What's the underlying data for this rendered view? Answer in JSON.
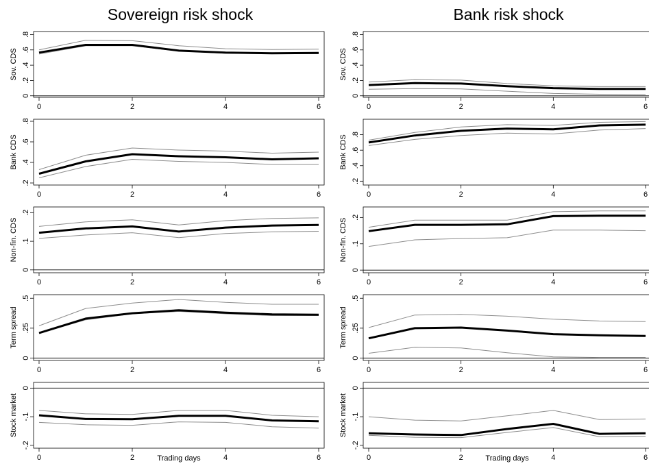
{
  "titles": [
    "Sovereign risk shock",
    "Bank risk shock"
  ],
  "xlabel": "Trading days",
  "colors": {
    "point": "#000000",
    "band": "#8c8c8c",
    "zero_line": "#000000",
    "frame": "#000000"
  },
  "chart_data": [
    {
      "type": "line",
      "column": 0,
      "row": 0,
      "ylabel": "Sov. CDS",
      "x": [
        0,
        1,
        2,
        3,
        4,
        5,
        6
      ],
      "xlim": [
        0,
        6
      ],
      "xticks": [
        "0",
        "2",
        "4",
        "6"
      ],
      "ylim": [
        -0.02,
        0.84
      ],
      "yticks": [
        {
          "v": 0,
          "t": "0"
        },
        {
          "v": 0.2,
          "t": ".2"
        },
        {
          "v": 0.4,
          "t": ".4"
        },
        {
          "v": 0.6,
          "t": ".6"
        },
        {
          "v": 0.8,
          "t": ".8"
        }
      ],
      "zero_line": true,
      "series": [
        {
          "role": "point",
          "values": [
            0.565,
            0.665,
            0.665,
            0.59,
            0.565,
            0.555,
            0.56
          ]
        },
        {
          "role": "upper",
          "values": [
            0.6,
            0.725,
            0.72,
            0.655,
            0.615,
            0.605,
            0.61
          ]
        },
        {
          "role": "lower",
          "values": [
            0.545,
            0.655,
            0.655,
            0.585,
            0.555,
            0.55,
            0.55
          ]
        }
      ]
    },
    {
      "type": "line",
      "column": 1,
      "row": 0,
      "ylabel": "Sov. CDS",
      "x": [
        0,
        1,
        2,
        3,
        4,
        5,
        6
      ],
      "xlim": [
        0,
        6
      ],
      "xticks": [
        "0",
        "2",
        "4",
        "6"
      ],
      "ylim": [
        -0.02,
        0.84
      ],
      "yticks": [
        {
          "v": 0,
          "t": "0"
        },
        {
          "v": 0.2,
          "t": ".2"
        },
        {
          "v": 0.4,
          "t": ".4"
        },
        {
          "v": 0.6,
          "t": ".6"
        },
        {
          "v": 0.8,
          "t": ".8"
        }
      ],
      "zero_line": true,
      "series": [
        {
          "role": "point",
          "values": [
            0.14,
            0.165,
            0.16,
            0.125,
            0.1,
            0.09,
            0.09
          ]
        },
        {
          "role": "upper",
          "values": [
            0.18,
            0.21,
            0.205,
            0.16,
            0.13,
            0.12,
            0.12
          ]
        },
        {
          "role": "lower",
          "values": [
            0.085,
            0.095,
            0.09,
            0.06,
            0.03,
            0.02,
            0.015
          ]
        }
      ]
    },
    {
      "type": "line",
      "column": 0,
      "row": 1,
      "ylabel": "Bank CDS",
      "x": [
        0,
        1,
        2,
        3,
        4,
        5,
        6
      ],
      "xlim": [
        0,
        6
      ],
      "xticks": [
        "0",
        "2",
        "4",
        "6"
      ],
      "ylim": [
        0.18,
        0.82
      ],
      "yticks": [
        {
          "v": 0.2,
          "t": ".2"
        },
        {
          "v": 0.4,
          "t": ".4"
        },
        {
          "v": 0.6,
          "t": ".6"
        },
        {
          "v": 0.8,
          "t": ".8"
        }
      ],
      "zero_line": false,
      "series": [
        {
          "role": "point",
          "values": [
            0.29,
            0.41,
            0.48,
            0.46,
            0.45,
            0.43,
            0.44
          ]
        },
        {
          "role": "upper",
          "values": [
            0.33,
            0.47,
            0.54,
            0.52,
            0.51,
            0.49,
            0.5
          ]
        },
        {
          "role": "lower",
          "values": [
            0.25,
            0.36,
            0.43,
            0.41,
            0.4,
            0.38,
            0.38
          ]
        }
      ]
    },
    {
      "type": "line",
      "column": 1,
      "row": 1,
      "ylabel": "Bank CDS",
      "x": [
        0,
        1,
        2,
        3,
        4,
        5,
        6
      ],
      "xlim": [
        0,
        6
      ],
      "xticks": [
        "0",
        "2",
        "4",
        "6"
      ],
      "ylim": [
        0.15,
        1.0
      ],
      "yticks": [
        {
          "v": 0.2,
          "t": ".2"
        },
        {
          "v": 0.4,
          "t": ".4"
        },
        {
          "v": 0.6,
          "t": ".6"
        },
        {
          "v": 0.8,
          "t": ".8"
        }
      ],
      "zero_line": false,
      "series": [
        {
          "role": "point",
          "values": [
            0.7,
            0.79,
            0.85,
            0.88,
            0.87,
            0.92,
            0.93
          ]
        },
        {
          "role": "upper",
          "values": [
            0.73,
            0.83,
            0.9,
            0.93,
            0.92,
            0.96,
            0.97
          ]
        },
        {
          "role": "lower",
          "values": [
            0.66,
            0.74,
            0.79,
            0.82,
            0.81,
            0.86,
            0.88
          ]
        }
      ]
    },
    {
      "type": "line",
      "column": 0,
      "row": 2,
      "ylabel": "Non-fin. CDS",
      "x": [
        0,
        1,
        2,
        3,
        4,
        5,
        6
      ],
      "xlim": [
        0,
        6
      ],
      "xticks": [
        "0",
        "2",
        "4",
        "6"
      ],
      "ylim": [
        -0.01,
        0.22
      ],
      "yticks": [
        {
          "v": 0,
          "t": "0"
        },
        {
          "v": 0.1,
          "t": ".1"
        },
        {
          "v": 0.2,
          "t": ".2"
        }
      ],
      "zero_line": true,
      "series": [
        {
          "role": "point",
          "values": [
            0.13,
            0.145,
            0.152,
            0.134,
            0.148,
            0.155,
            0.157
          ]
        },
        {
          "role": "upper",
          "values": [
            0.152,
            0.168,
            0.175,
            0.157,
            0.172,
            0.18,
            0.182
          ]
        },
        {
          "role": "lower",
          "values": [
            0.11,
            0.122,
            0.13,
            0.113,
            0.127,
            0.133,
            0.135
          ]
        }
      ]
    },
    {
      "type": "line",
      "column": 1,
      "row": 2,
      "ylabel": "Non-fin. CDS",
      "x": [
        0,
        1,
        2,
        3,
        4,
        5,
        6
      ],
      "xlim": [
        0,
        6
      ],
      "xticks": [
        "0",
        "2",
        "4",
        "6"
      ],
      "ylim": [
        -0.01,
        0.24
      ],
      "yticks": [
        {
          "v": 0,
          "t": "0"
        },
        {
          "v": 0.1,
          "t": ".1"
        },
        {
          "v": 0.2,
          "t": ".2"
        }
      ],
      "zero_line": true,
      "series": [
        {
          "role": "point",
          "values": [
            0.148,
            0.172,
            0.172,
            0.174,
            0.205,
            0.207,
            0.207
          ]
        },
        {
          "role": "upper",
          "values": [
            0.163,
            0.19,
            0.19,
            0.19,
            0.222,
            0.225,
            0.225
          ]
        },
        {
          "role": "lower",
          "values": [
            0.09,
            0.115,
            0.12,
            0.123,
            0.152,
            0.152,
            0.15
          ]
        }
      ]
    },
    {
      "type": "line",
      "column": 0,
      "row": 3,
      "ylabel": "Term spread",
      "x": [
        0,
        1,
        2,
        3,
        4,
        5,
        6
      ],
      "xlim": [
        0,
        6
      ],
      "xticks": [
        "0",
        "2",
        "4",
        "6"
      ],
      "ylim": [
        -0.02,
        0.53
      ],
      "yticks": [
        {
          "v": 0,
          "t": "0"
        },
        {
          "v": 0.25,
          "t": ".25"
        },
        {
          "v": 0.5,
          "t": ".5"
        }
      ],
      "zero_line": true,
      "series": [
        {
          "role": "point",
          "values": [
            0.21,
            0.33,
            0.375,
            0.4,
            0.38,
            0.365,
            0.362
          ]
        },
        {
          "role": "upper",
          "values": [
            0.27,
            0.415,
            0.46,
            0.49,
            0.465,
            0.45,
            0.45
          ]
        },
        {
          "role": "lower",
          "values": [
            0.205,
            0.32,
            0.37,
            0.39,
            0.37,
            0.355,
            0.355
          ]
        }
      ]
    },
    {
      "type": "line",
      "column": 1,
      "row": 3,
      "ylabel": "Term spread",
      "x": [
        0,
        1,
        2,
        3,
        4,
        5,
        6
      ],
      "xlim": [
        0,
        6
      ],
      "xticks": [
        "0",
        "2",
        "4",
        "6"
      ],
      "ylim": [
        -0.02,
        0.53
      ],
      "yticks": [
        {
          "v": 0,
          "t": "0"
        },
        {
          "v": 0.25,
          "t": ".25"
        },
        {
          "v": 0.5,
          "t": ".5"
        }
      ],
      "zero_line": true,
      "series": [
        {
          "role": "point",
          "values": [
            0.165,
            0.25,
            0.255,
            0.23,
            0.2,
            0.19,
            0.185
          ]
        },
        {
          "role": "upper",
          "values": [
            0.255,
            0.36,
            0.365,
            0.35,
            0.325,
            0.31,
            0.305
          ]
        },
        {
          "role": "lower",
          "values": [
            0.04,
            0.09,
            0.085,
            0.045,
            0.01,
            0.005,
            0.005
          ]
        }
      ]
    },
    {
      "type": "line",
      "column": 0,
      "row": 4,
      "ylabel": "Stock market",
      "x": [
        0,
        1,
        2,
        3,
        4,
        5,
        6
      ],
      "xlim": [
        0,
        6
      ],
      "xticks": [
        "0",
        "2",
        "4",
        "6"
      ],
      "ylim": [
        -0.21,
        0.02
      ],
      "yticks": [
        {
          "v": 0,
          "t": "0"
        },
        {
          "v": -0.1,
          "t": "-.1"
        },
        {
          "v": -0.2,
          "t": "-.2"
        }
      ],
      "zero_line": true,
      "series": [
        {
          "role": "point",
          "values": [
            -0.095,
            -0.108,
            -0.109,
            -0.097,
            -0.097,
            -0.113,
            -0.116
          ]
        },
        {
          "role": "upper",
          "values": [
            -0.078,
            -0.09,
            -0.092,
            -0.078,
            -0.078,
            -0.095,
            -0.1
          ]
        },
        {
          "role": "lower",
          "values": [
            -0.12,
            -0.128,
            -0.13,
            -0.118,
            -0.12,
            -0.135,
            -0.14
          ]
        }
      ]
    },
    {
      "type": "line",
      "column": 1,
      "row": 4,
      "ylabel": "Stock market",
      "x": [
        0,
        1,
        2,
        3,
        4,
        5,
        6
      ],
      "xlim": [
        0,
        6
      ],
      "xticks": [
        "0",
        "2",
        "4",
        "6"
      ],
      "ylim": [
        -0.21,
        0.02
      ],
      "yticks": [
        {
          "v": 0,
          "t": "0"
        },
        {
          "v": -0.1,
          "t": "-.1"
        },
        {
          "v": -0.2,
          "t": "-.2"
        }
      ],
      "zero_line": true,
      "series": [
        {
          "role": "point",
          "values": [
            -0.158,
            -0.162,
            -0.164,
            -0.143,
            -0.125,
            -0.16,
            -0.158
          ]
        },
        {
          "role": "upper",
          "values": [
            -0.1,
            -0.112,
            -0.115,
            -0.097,
            -0.078,
            -0.11,
            -0.108
          ]
        },
        {
          "role": "lower",
          "values": [
            -0.165,
            -0.172,
            -0.173,
            -0.155,
            -0.138,
            -0.17,
            -0.168
          ]
        }
      ]
    }
  ]
}
